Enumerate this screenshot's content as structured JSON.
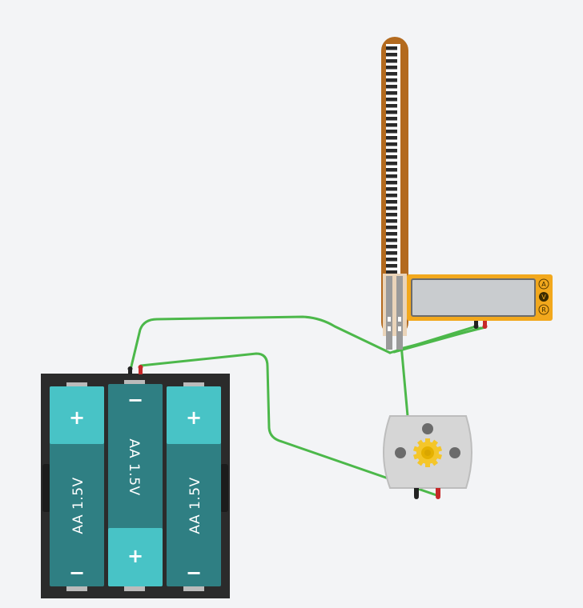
{
  "battery_pack": {
    "cells": [
      {
        "label": "AA 1.5V",
        "top_sign": "+",
        "bottom_sign": "−"
      },
      {
        "label": "AA 1.5V",
        "top_sign": "−",
        "bottom_sign": "+"
      },
      {
        "label": "AA 1.5V",
        "top_sign": "+",
        "bottom_sign": "−"
      }
    ]
  },
  "multimeter": {
    "modes": [
      "A",
      "V",
      "R"
    ],
    "active_mode": "V",
    "display_value": ""
  },
  "colors": {
    "canvas": "#f3f4f6",
    "wire": "#4cb84a",
    "battery_body": "#2b2b2b",
    "cell_dark": "#2f7f83",
    "cell_light": "#48c3c6",
    "multimeter_body": "#f2a81d",
    "flex_sensor_body": "#b36a1e",
    "motor_body": "#d4d4d4",
    "motor_gear": "#f4c62a"
  }
}
